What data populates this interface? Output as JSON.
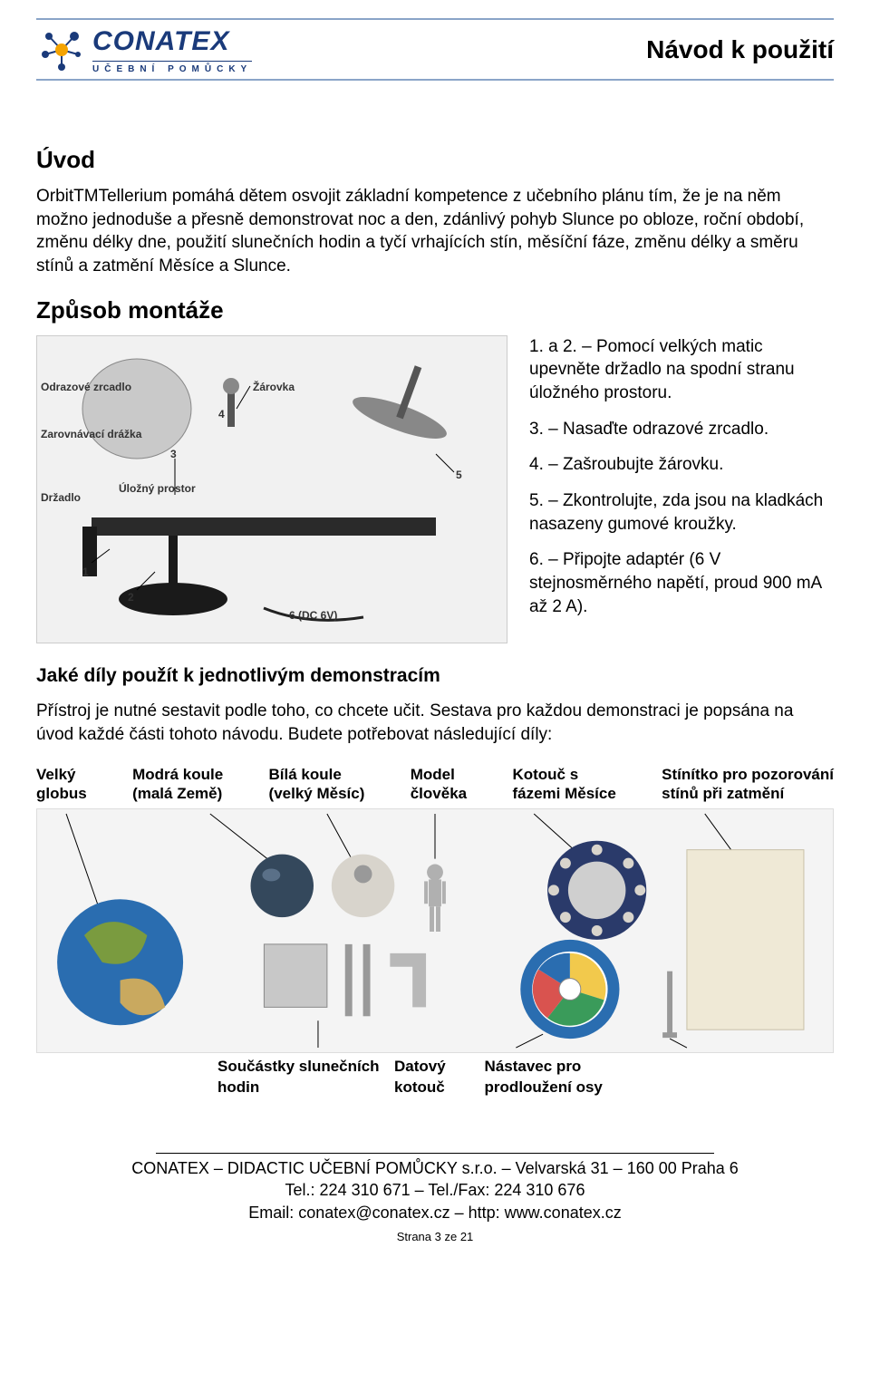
{
  "header": {
    "logo_name": "CONATEX",
    "logo_sub": "UČEBNÍ POMŮCKY",
    "title": "Návod k použití",
    "logo_colors": {
      "blue": "#1a3a7a",
      "orange": "#f4a300",
      "border": "#8aa4c8"
    }
  },
  "intro": {
    "heading": "Úvod",
    "text": "OrbitTMTellerium pomáhá dětem osvojit základní kompetence z učebního plánu tím, že je na něm možno jednoduše a přesně demonstrovat noc a den, zdánlivý pohyb Slunce po obloze, roční období, změnu délky dne, použití slunečních hodin a tyčí vrhajících stín, měsíční fáze, změnu délky a směru stínů a zatmění Měsíce a Slunce."
  },
  "assembly": {
    "heading": "Způsob montáže",
    "image_labels": {
      "mirror": "Odrazové zrcadlo",
      "groove": "Zarovnávací drážka",
      "holder": "Držadlo",
      "storage": "Úložný prostor",
      "bulb": "Žárovka",
      "dc": "6 (DC 6V)",
      "n1": "1",
      "n2": "2",
      "n3": "3",
      "n4": "4",
      "n5": "5"
    },
    "steps": {
      "s1": "1. a 2. – Pomocí velkých matic upevněte držadlo na spodní stranu úložného prostoru.",
      "s2": "3. – Nasaďte odrazové zrcadlo.",
      "s3": "4. – Zašroubujte žárovku.",
      "s4": "5. – Zkontrolujte, zda jsou na kladkách nasazeny gumové kroužky.",
      "s5": "6. – Připojte adaptér (6 V stejnosměrného napětí, proud 900 mA až 2 A)."
    }
  },
  "usage": {
    "heading": "Jaké díly použít k jednotlivým demonstracím",
    "text": "Přístroj je nutné sestavit podle toho, co chcete učit. Sestava pro každou demonstraci je popsána na úvod každé části tohoto návodu. Budete potřebovat následující díly:"
  },
  "parts": {
    "top": {
      "globe": "Velký\nglobus",
      "blue_ball": "Modrá koule\n(malá Země)",
      "white_ball": "Bílá koule\n(velký Měsíc)",
      "man": "Model\nčlověka",
      "phase_disc": "Kotouč s\nfázemi Měsíce",
      "screen": "Stínítko pro pozorování\nstínů při zatmění"
    },
    "bottom": {
      "sundial": "Součástky slunečních hodin",
      "date_disc": "Datový kotouč",
      "extender": "Nástavec pro prodloužení osy"
    },
    "colors": {
      "globe_ocean": "#2a6db0",
      "globe_land": "#7a9b3f",
      "blue_ball": "#34485c",
      "white_ball": "#d8d4cc",
      "man": "#b0b0b0",
      "phase_ring": "#2a3a6a",
      "date_ring_outer": "#2a6db0",
      "date_y": "#f2c94c",
      "date_g": "#3a9b5a",
      "date_r": "#d9534f",
      "screen": "#efe9d6",
      "metal": "#b8b8b8"
    }
  },
  "footer": {
    "line1": "CONATEX – DIDACTIC UČEBNÍ POMŮCKY s.r.o. – Velvarská 31 – 160 00 Praha 6",
    "line2": "Tel.: 224 310 671 – Tel./Fax: 224 310 676",
    "line3": "Email: conatex@conatex.cz – http: www.conatex.cz",
    "page": "Strana 3 ze 21"
  }
}
